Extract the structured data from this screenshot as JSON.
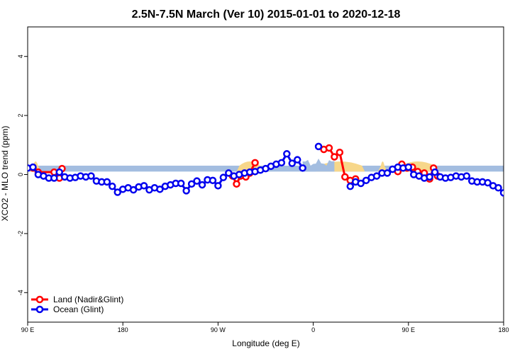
{
  "chart_data": {
    "type": "line",
    "title": "2.5N-7.5N March (Ver 10)   2015-01-01 to 2020-12-18",
    "xlabel": "Longitude (deg E)",
    "ylabel": "XCO2 - MLO trend (ppm)",
    "xlim": [
      0,
      360
    ],
    "ylim": [
      -5,
      5
    ],
    "x_ticks": [
      {
        "value": 0,
        "label": "90 E"
      },
      {
        "value": 72,
        "label": "180"
      },
      {
        "value": 144,
        "label": "90 W"
      },
      {
        "value": 216,
        "label": "0"
      },
      {
        "value": 288,
        "label": "90 E"
      },
      {
        "value": 360,
        "label": "180"
      }
    ],
    "y_ticks": [
      -4,
      -2,
      0,
      2,
      4
    ],
    "colors": {
      "land": "#ff0000",
      "ocean": "#0000ee",
      "ocean_band": "#a3bde0",
      "land_band": "#f7d78a"
    },
    "background": {
      "band_y": [
        0.1,
        0.3
      ],
      "ocean_ranges": [
        [
          0,
          360
        ]
      ],
      "land_ranges": [
        [
          2,
          10
        ],
        [
          158,
          178
        ],
        [
          218,
          255
        ],
        [
          265,
          272
        ],
        [
          280,
          310
        ]
      ],
      "mountain_ranges": [
        [
          208,
          232
        ]
      ]
    },
    "legend": {
      "position": "bottom-left",
      "entries": [
        {
          "name": "Land (Nadir&Glint)",
          "color": "#ff0000"
        },
        {
          "name": "Ocean (Glint)",
          "color": "#0000ee"
        }
      ]
    },
    "series": [
      {
        "name": "Land (Nadir&Glint)",
        "color": "#ff0000",
        "segments": [
          [
            [
              4,
              0.22
            ],
            [
              8,
              0.08
            ],
            [
              20,
              0.08
            ],
            [
              24,
              -0.12
            ],
            [
              26,
              0.2
            ]
          ],
          [
            [
              155,
              -0.05
            ],
            [
              158,
              -0.32
            ],
            [
              161,
              -0.05
            ],
            [
              165,
              -0.08
            ],
            [
              168,
              0.05
            ],
            [
              172,
              0.4
            ]
          ],
          [
            [
              224,
              0.85
            ],
            [
              228,
              0.9
            ],
            [
              232,
              0.6
            ],
            [
              236,
              0.75
            ],
            [
              240,
              -0.08
            ],
            [
              244,
              -0.2
            ],
            [
              248,
              -0.15
            ]
          ],
          [
            [
              280,
              0.1
            ],
            [
              283,
              0.35
            ],
            [
              287,
              0.22
            ],
            [
              291,
              0.25
            ],
            [
              295,
              0.1
            ],
            [
              300,
              0.05
            ],
            [
              304,
              -0.15
            ],
            [
              307,
              0.22
            ],
            [
              310,
              -0.05
            ]
          ]
        ]
      },
      {
        "name": "Ocean (Glint)",
        "color": "#0000ee",
        "segments": [
          [
            [
              0,
              0.22
            ],
            [
              4,
              0.25
            ],
            [
              8,
              0.0
            ],
            [
              12,
              -0.05
            ],
            [
              16,
              -0.12
            ],
            [
              20,
              -0.12
            ],
            [
              24,
              0.08
            ],
            [
              28,
              -0.08
            ],
            [
              32,
              -0.12
            ],
            [
              36,
              -0.1
            ],
            [
              40,
              -0.05
            ],
            [
              44,
              -0.08
            ],
            [
              48,
              -0.05
            ],
            [
              52,
              -0.22
            ],
            [
              56,
              -0.25
            ],
            [
              60,
              -0.25
            ],
            [
              64,
              -0.4
            ],
            [
              68,
              -0.6
            ],
            [
              72,
              -0.5
            ],
            [
              76,
              -0.45
            ],
            [
              80,
              -0.52
            ],
            [
              84,
              -0.42
            ],
            [
              88,
              -0.38
            ],
            [
              92,
              -0.52
            ],
            [
              96,
              -0.45
            ],
            [
              100,
              -0.5
            ],
            [
              104,
              -0.4
            ],
            [
              108,
              -0.35
            ],
            [
              112,
              -0.3
            ],
            [
              116,
              -0.3
            ],
            [
              120,
              -0.55
            ],
            [
              124,
              -0.32
            ],
            [
              128,
              -0.22
            ],
            [
              132,
              -0.35
            ],
            [
              136,
              -0.18
            ],
            [
              140,
              -0.2
            ],
            [
              144,
              -0.38
            ],
            [
              148,
              -0.1
            ],
            [
              152,
              0.05
            ],
            [
              156,
              -0.05
            ],
            [
              160,
              0.0
            ],
            [
              164,
              0.05
            ],
            [
              168,
              0.08
            ],
            [
              172,
              0.1
            ],
            [
              176,
              0.15
            ],
            [
              180,
              0.2
            ],
            [
              184,
              0.28
            ],
            [
              188,
              0.35
            ],
            [
              192,
              0.4
            ],
            [
              196,
              0.7
            ],
            [
              200,
              0.38
            ],
            [
              204,
              0.5
            ],
            [
              208,
              0.22
            ]
          ],
          [
            [
              220,
              0.95
            ]
          ],
          [
            [
              244,
              -0.4
            ],
            [
              248,
              -0.25
            ],
            [
              252,
              -0.3
            ],
            [
              256,
              -0.2
            ],
            [
              260,
              -0.1
            ],
            [
              264,
              -0.05
            ],
            [
              268,
              0.05
            ],
            [
              272,
              0.05
            ],
            [
              276,
              0.18
            ],
            [
              280,
              0.25
            ],
            [
              284,
              0.22
            ],
            [
              288,
              0.25
            ],
            [
              292,
              0.0
            ],
            [
              296,
              -0.05
            ],
            [
              300,
              -0.12
            ],
            [
              304,
              -0.08
            ],
            [
              308,
              0.08
            ],
            [
              312,
              -0.08
            ],
            [
              316,
              -0.12
            ],
            [
              320,
              -0.1
            ],
            [
              324,
              -0.05
            ],
            [
              328,
              -0.08
            ],
            [
              332,
              -0.05
            ],
            [
              336,
              -0.22
            ],
            [
              340,
              -0.25
            ],
            [
              344,
              -0.25
            ],
            [
              348,
              -0.28
            ],
            [
              352,
              -0.38
            ],
            [
              356,
              -0.45
            ],
            [
              360,
              -0.62
            ]
          ]
        ]
      }
    ]
  }
}
